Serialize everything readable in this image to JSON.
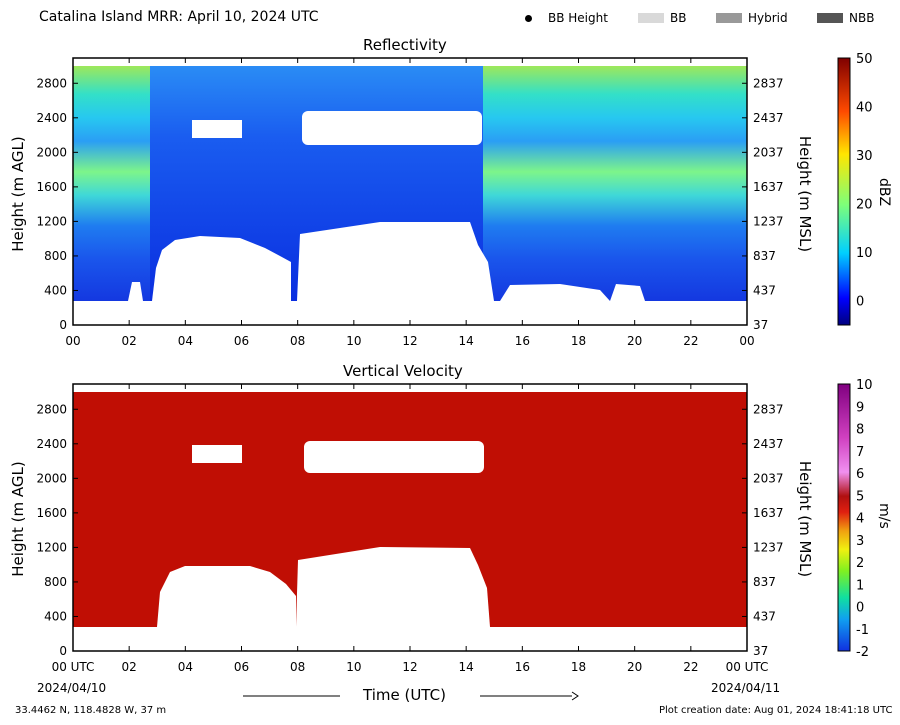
{
  "header": {
    "title": "Catalina Island MRR:  April 10, 2024 UTC",
    "legend": [
      {
        "label": "BB Height",
        "marker": "dot",
        "color": "#000000"
      },
      {
        "label": "BB",
        "marker": "swatch",
        "color": "#d9d9d9"
      },
      {
        "label": "Hybrid",
        "marker": "swatch",
        "color": "#999999"
      },
      {
        "label": "NBB",
        "marker": "swatch",
        "color": "#555555"
      }
    ]
  },
  "chart_data": [
    {
      "type": "heatmap",
      "title": "Reflectivity",
      "ylabel": "Height (m AGL)",
      "ylabel_right": "Height (m MSL)",
      "ylim": [
        0,
        3000
      ],
      "yticks": [
        "0",
        "400",
        "800",
        "1200",
        "1600",
        "2000",
        "2400",
        "2800"
      ],
      "yticks_right": [
        "37",
        "437",
        "837",
        "1237",
        "1637",
        "2037",
        "2437",
        "2837"
      ],
      "xticks": [
        "00",
        "02",
        "04",
        "06",
        "08",
        "10",
        "12",
        "14",
        "16",
        "18",
        "20",
        "22",
        "00"
      ],
      "colorbar": {
        "label": "dBZ",
        "range": [
          -5,
          50
        ],
        "ticks": [
          "0",
          "10",
          "20",
          "30",
          "40",
          "50"
        ]
      }
    },
    {
      "type": "heatmap",
      "title": "Vertical Velocity",
      "ylabel": "Height (m AGL)",
      "ylabel_right": "Height (m MSL)",
      "ylim": [
        0,
        3000
      ],
      "yticks": [
        "0",
        "400",
        "800",
        "1200",
        "1600",
        "2000",
        "2400",
        "2800"
      ],
      "yticks_right": [
        "37",
        "437",
        "837",
        "1237",
        "1637",
        "2037",
        "2437",
        "2837"
      ],
      "xticks": [
        "00 UTC",
        "02",
        "04",
        "06",
        "08",
        "10",
        "12",
        "14",
        "16",
        "18",
        "20",
        "22",
        "00 UTC"
      ],
      "colorbar": {
        "label": "m/s",
        "range": [
          -2,
          10
        ],
        "ticks": [
          "-2",
          "-1",
          "0",
          "1",
          "2",
          "3",
          "4",
          "5",
          "6",
          "7",
          "8",
          "9",
          "10"
        ]
      }
    }
  ],
  "x_axis": {
    "label": "Time (UTC)",
    "start_date": "2024/04/10",
    "end_date": "2024/04/11"
  },
  "footer": {
    "location": "33.4462 N, 118.4828 W, 37 m",
    "creation": "Plot creation date: Aug 01, 2024 18:41:18 UTC"
  }
}
